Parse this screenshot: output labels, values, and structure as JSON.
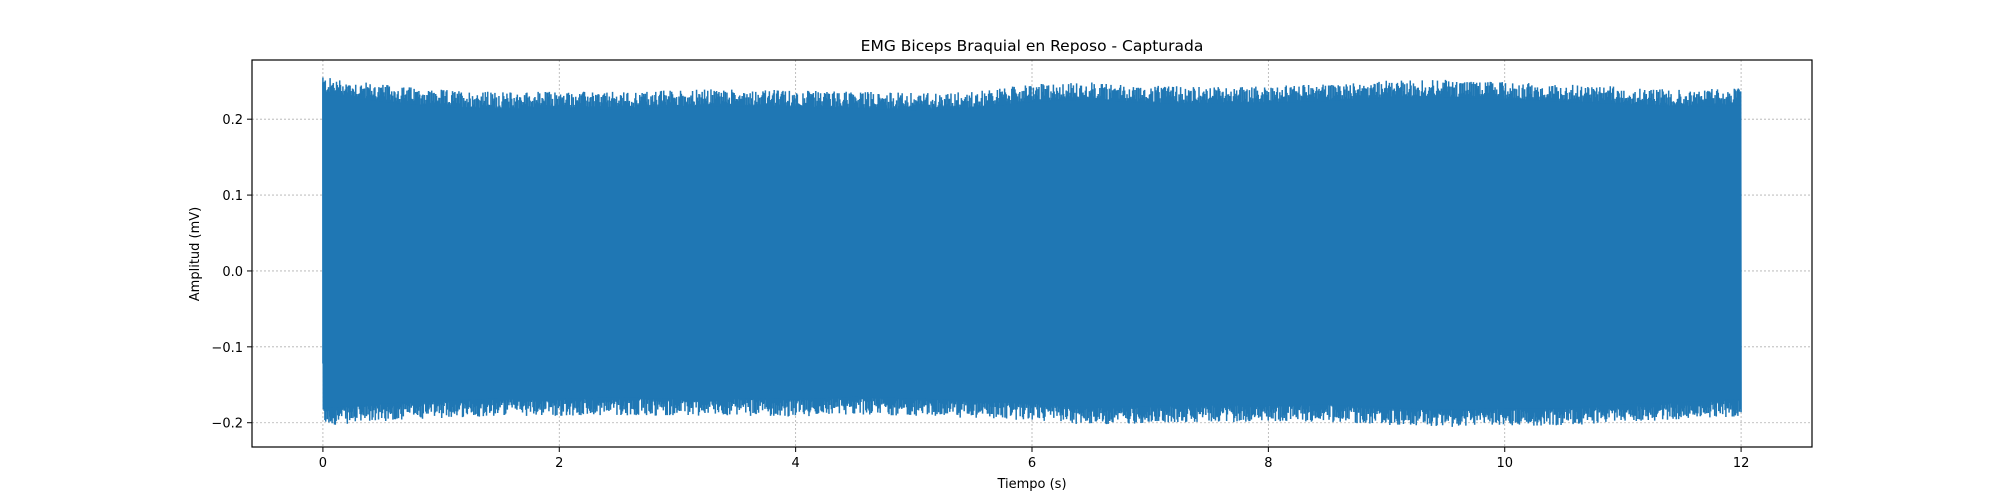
{
  "chart_data": {
    "type": "line",
    "title": "EMG Biceps Braquial en Reposo - Capturada",
    "xlabel": "Tiempo (s)",
    "ylabel": "Amplitud (mV)",
    "xlim": [
      -0.6,
      12.6
    ],
    "ylim": [
      -0.232,
      0.278
    ],
    "x_ticks": [
      0,
      2,
      4,
      6,
      8,
      10,
      12
    ],
    "x_tick_labels": [
      "0",
      "2",
      "4",
      "6",
      "8",
      "10",
      "12"
    ],
    "y_ticks": [
      -0.2,
      -0.1,
      0.0,
      0.1,
      0.2
    ],
    "y_tick_labels": [
      "−0.2",
      "−0.1",
      "0.0",
      "0.1",
      "0.2"
    ],
    "grid": true,
    "color": "#1f77b4",
    "series": [
      {
        "x": [
          0,
          0.5,
          1,
          1.5,
          2,
          2.5,
          3,
          3.5,
          4,
          4.5,
          5,
          5.5,
          6,
          6.5,
          7,
          7.5,
          8,
          8.5,
          9,
          9.5,
          10,
          10.5,
          11,
          11.5,
          12
        ],
        "upper_envelope": [
          0.245,
          0.235,
          0.228,
          0.225,
          0.226,
          0.225,
          0.228,
          0.229,
          0.227,
          0.226,
          0.224,
          0.226,
          0.235,
          0.238,
          0.233,
          0.232,
          0.233,
          0.236,
          0.24,
          0.241,
          0.238,
          0.235,
          0.232,
          0.228,
          0.23
        ],
        "lower_envelope": [
          -0.193,
          -0.187,
          -0.183,
          -0.18,
          -0.18,
          -0.179,
          -0.18,
          -0.18,
          -0.181,
          -0.178,
          -0.18,
          -0.183,
          -0.186,
          -0.192,
          -0.19,
          -0.188,
          -0.189,
          -0.188,
          -0.192,
          -0.195,
          -0.193,
          -0.193,
          -0.188,
          -0.185,
          -0.181
        ]
      }
    ]
  }
}
